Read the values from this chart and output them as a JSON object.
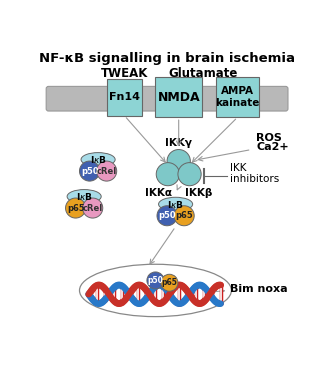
{
  "title": "NF-κB signalling in brain ischemia",
  "bg_color": "#ffffff",
  "membrane_color": "#b8b8b8",
  "receptor_color": "#8dd4d4",
  "tweak_label": "TWEAK",
  "glutamate_label": "Glutamate",
  "fn14_label": "Fn14",
  "nmda_label": "NMDA",
  "ampa_label": "AMPA\nkainate",
  "IKK_color": "#7ec8c8",
  "IKKgamma_label": "IKKγ",
  "IKKalpha_label": "IKKα",
  "IKKbeta_label": "IKKβ",
  "IkB_color": "#a8dce8",
  "p50_color": "#4060b0",
  "p65_color": "#e8a020",
  "cRel_color": "#e898c0",
  "ROS_label": "ROS",
  "Ca_label": "Ca2+",
  "IKK_inhibitors_label": "IKK\ninhibitors",
  "Bim_noxa_label": "Bim noxa",
  "arrow_color": "#999999",
  "ec_color": "#666666"
}
